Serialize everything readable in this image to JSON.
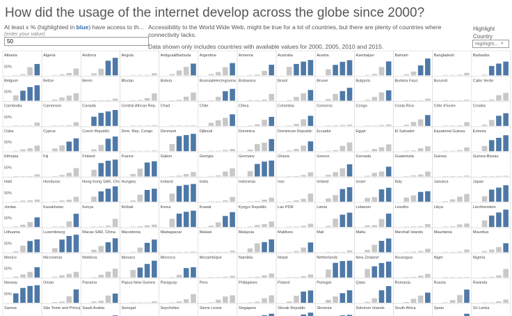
{
  "title": "How did the usage of the internet develop across the globe since 2000?",
  "parameter": {
    "label_prefix": "At least x % (highlighted in ",
    "label_highlight": "blue",
    "label_suffix": ") have access to th...",
    "hint": "(enter your value)",
    "value": "50"
  },
  "description": {
    "line1": "Accessibility to the World Wide Web, might be true for a lot of countries, but there are plenty of countries where connectivity lacks.",
    "line2": "Data shown only includes countries with available values for 2000, 2005, 2010 and 2015."
  },
  "highlight": {
    "label": "Highlight Country",
    "placeholder": "Highlight..."
  },
  "colors": {
    "highlight": "#4e79a7",
    "base": "#c8c8c8"
  },
  "chart_data": {
    "type": "bar",
    "small_multiples": true,
    "years": [
      "2000",
      "2005",
      "2010",
      "2015"
    ],
    "threshold": 50,
    "ylim": [
      0,
      100
    ],
    "ytick_label": "50%",
    "countries": [
      {
        "name": "Albania",
        "values": [
          0,
          6,
          45,
          63
        ]
      },
      {
        "name": "Algeria",
        "values": [
          0,
          6,
          13,
          38
        ]
      },
      {
        "name": "Andorra",
        "values": [
          11,
          37,
          81,
          97
        ]
      },
      {
        "name": "Angola",
        "values": [
          0,
          1,
          3,
          12
        ]
      },
      {
        "name": "Antigua&Barbuda",
        "values": [
          7,
          27,
          47,
          65
        ]
      },
      {
        "name": "Argentina",
        "values": [
          7,
          18,
          45,
          68
        ]
      },
      {
        "name": "Armenia",
        "values": [
          1,
          5,
          25,
          59
        ]
      },
      {
        "name": "Australia",
        "values": [
          47,
          63,
          76,
          85
        ]
      },
      {
        "name": "Austria",
        "values": [
          34,
          58,
          75,
          84
        ]
      },
      {
        "name": "Azerbaijan",
        "values": [
          0,
          8,
          46,
          77
        ]
      },
      {
        "name": "Bahrain",
        "values": [
          6,
          21,
          55,
          93
        ]
      },
      {
        "name": "Bangladesh",
        "values": [
          0,
          0,
          4,
          14
        ]
      },
      {
        "name": "Barbados",
        "values": [
          4,
          52,
          65,
          76
        ]
      },
      {
        "name": "Belgium",
        "values": [
          29,
          55,
          75,
          85
        ]
      },
      {
        "name": "Belize",
        "values": [
          6,
          17,
          28,
          41
        ]
      },
      {
        "name": "Benin",
        "values": [
          0,
          1,
          3,
          11
        ]
      },
      {
        "name": "Bhutan",
        "values": [
          0,
          4,
          14,
          40
        ]
      },
      {
        "name": "Bolivia",
        "values": [
          1,
          5,
          22,
          45
        ]
      },
      {
        "name": "Bosnia&Herzegovina",
        "values": [
          1,
          21,
          52,
          65
        ]
      },
      {
        "name": "Botswana",
        "values": [
          3,
          3,
          6,
          37
        ]
      },
      {
        "name": "Brasil",
        "values": [
          3,
          21,
          41,
          59
        ]
      },
      {
        "name": "Brunei",
        "values": [
          9,
          37,
          53,
          71
        ]
      },
      {
        "name": "Bulgaria",
        "values": [
          5,
          20,
          46,
          57
        ]
      },
      {
        "name": "Burkina Faso",
        "values": [
          0,
          0,
          2,
          11
        ]
      },
      {
        "name": "Burundi",
        "values": [
          0,
          1,
          1,
          5
        ]
      },
      {
        "name": "Cabo Verde",
        "values": [
          2,
          6,
          30,
          43
        ]
      },
      {
        "name": "Cambodia",
        "values": [
          0,
          0,
          1,
          19
        ]
      },
      {
        "name": "Cameroon",
        "values": [
          0,
          1,
          4,
          20
        ]
      },
      {
        "name": "Canada",
        "values": [
          51,
          72,
          80,
          88
        ]
      },
      {
        "name": "Central African Rep.",
        "values": [
          0,
          0,
          2,
          4
        ]
      },
      {
        "name": "Chad",
        "values": [
          0,
          0,
          2,
          3
        ]
      },
      {
        "name": "Chile",
        "values": [
          17,
          31,
          45,
          64
        ]
      },
      {
        "name": "China",
        "values": [
          2,
          9,
          34,
          50
        ]
      },
      {
        "name": "Colombia",
        "values": [
          2,
          11,
          37,
          56
        ]
      },
      {
        "name": "Comoros",
        "values": [
          0,
          3,
          5,
          7
        ]
      },
      {
        "name": "Congo",
        "values": [
          0,
          2,
          5,
          8
        ]
      },
      {
        "name": "Costa Rica",
        "values": [
          6,
          22,
          36,
          60
        ]
      },
      {
        "name": "Côte d'Ivoire",
        "values": [
          0,
          1,
          3,
          21
        ]
      },
      {
        "name": "Croatia",
        "values": [
          7,
          33,
          56,
          70
        ]
      },
      {
        "name": "Cuba",
        "values": [
          1,
          10,
          16,
          31
        ]
      },
      {
        "name": "Cyprus",
        "values": [
          15,
          32,
          53,
          71
        ]
      },
      {
        "name": "Czech Republic",
        "values": [
          10,
          35,
          69,
          81
        ]
      },
      {
        "name": "Dem. Rep. Congo",
        "values": [
          0,
          0,
          1,
          4
        ]
      },
      {
        "name": "Denmark",
        "values": [
          39,
          83,
          89,
          96
        ]
      },
      {
        "name": "Djibouti",
        "values": [
          0,
          1,
          7,
          12
        ]
      },
      {
        "name": "Dominica",
        "values": [
          9,
          39,
          47,
          67
        ]
      },
      {
        "name": "Dominican Republic",
        "values": [
          4,
          12,
          31,
          54
        ]
      },
      {
        "name": "Ecuador",
        "values": [
          1,
          6,
          29,
          49
        ]
      },
      {
        "name": "Egypt",
        "values": [
          1,
          12,
          22,
          38
        ]
      },
      {
        "name": "El Salvador",
        "values": [
          1,
          4,
          16,
          27
        ]
      },
      {
        "name": "Equatorial Guinea",
        "values": [
          0,
          1,
          6,
          21
        ]
      },
      {
        "name": "Estonia",
        "values": [
          29,
          61,
          74,
          88
        ]
      },
      {
        "name": "Ethiopia",
        "values": [
          0,
          0,
          1,
          12
        ]
      },
      {
        "name": "Fiji",
        "values": [
          1,
          8,
          20,
          46
        ]
      },
      {
        "name": "Finland",
        "values": [
          37,
          74,
          87,
          93
        ]
      },
      {
        "name": "France",
        "values": [
          14,
          43,
          77,
          84
        ]
      },
      {
        "name": "Gabon",
        "values": [
          1,
          5,
          13,
          24
        ]
      },
      {
        "name": "Georgia",
        "values": [
          0,
          6,
          27,
          45
        ]
      },
      {
        "name": "Germany",
        "values": [
          30,
          69,
          82,
          88
        ]
      },
      {
        "name": "Ghana",
        "values": [
          0,
          2,
          8,
          23
        ]
      },
      {
        "name": "Greece",
        "values": [
          9,
          24,
          45,
          67
        ]
      },
      {
        "name": "Grenada",
        "values": [
          4,
          20,
          27,
          54
        ]
      },
      {
        "name": "Guatemala",
        "values": [
          1,
          6,
          11,
          27
        ]
      },
      {
        "name": "Guinea",
        "values": [
          0,
          1,
          1,
          5
        ]
      },
      {
        "name": "Guinea-Bissau",
        "values": [
          0,
          2,
          3,
          4
        ]
      },
      {
        "name": "Haiti",
        "values": [
          0,
          6,
          8,
          12
        ]
      },
      {
        "name": "Honduras",
        "values": [
          1,
          7,
          11,
          27
        ]
      },
      {
        "name": "Hong Kong SAR, China",
        "values": [
          28,
          57,
          72,
          85
        ]
      },
      {
        "name": "Hungary",
        "values": [
          7,
          39,
          65,
          72
        ]
      },
      {
        "name": "Iceland",
        "values": [
          45,
          87,
          93,
          98
        ]
      },
      {
        "name": "India",
        "values": [
          1,
          2,
          8,
          26
        ]
      },
      {
        "name": "Indonesia",
        "values": [
          1,
          4,
          11,
          22
        ]
      },
      {
        "name": "Iran",
        "values": [
          1,
          8,
          16,
          45
        ]
      },
      {
        "name": "Ireland",
        "values": [
          18,
          37,
          70,
          80
        ]
      },
      {
        "name": "Israel",
        "values": [
          21,
          25,
          68,
          77
        ]
      },
      {
        "name": "Italy",
        "values": [
          23,
          35,
          54,
          58
        ]
      },
      {
        "name": "Jamaica",
        "values": [
          3,
          13,
          28,
          43
        ]
      },
      {
        "name": "Japan",
        "values": [
          30,
          67,
          78,
          91
        ]
      },
      {
        "name": "Jordan",
        "values": [
          3,
          13,
          27,
          53
        ]
      },
      {
        "name": "Kazakhstan",
        "values": [
          1,
          3,
          31,
          73
        ]
      },
      {
        "name": "Kenya",
        "values": [
          0,
          3,
          7,
          45
        ]
      },
      {
        "name": "Kiribati",
        "values": [
          2,
          4,
          9,
          13
        ]
      },
      {
        "name": "Korea",
        "values": [
          45,
          74,
          84,
          90
        ]
      },
      {
        "name": "Kuwait",
        "values": [
          7,
          26,
          61,
          82
        ]
      },
      {
        "name": "Kyrgyz Republic",
        "values": [
          1,
          11,
          16,
          30
        ]
      },
      {
        "name": "Lao PDR",
        "values": [
          0,
          1,
          7,
          18
        ]
      },
      {
        "name": "Latvia",
        "values": [
          6,
          46,
          68,
          79
        ]
      },
      {
        "name": "Lebanon",
        "values": [
          8,
          10,
          44,
          74
        ]
      },
      {
        "name": "Lesotho",
        "values": [
          0,
          3,
          4,
          16
        ]
      },
      {
        "name": "Libya",
        "values": [
          0,
          4,
          14,
          19
        ]
      },
      {
        "name": "Liechtenstein",
        "values": [
          36,
          63,
          80,
          96
        ]
      },
      {
        "name": "Lithuania",
        "values": [
          6,
          36,
          62,
          71
        ]
      },
      {
        "name": "Luxembourg",
        "values": [
          23,
          70,
          90,
          97
        ]
      },
      {
        "name": "Macao SAR, China",
        "values": [
          14,
          35,
          55,
          77
        ]
      },
      {
        "name": "Macedonia",
        "values": [
          2,
          26,
          52,
          70
        ]
      },
      {
        "name": "Madagascar",
        "values": [
          0,
          1,
          2,
          4
        ]
      },
      {
        "name": "Malawi",
        "values": [
          0,
          0,
          2,
          9
        ]
      },
      {
        "name": "Malaysia",
        "values": [
          21,
          49,
          56,
          71
        ]
      },
      {
        "name": "Maldives",
        "values": [
          2,
          7,
          26,
          54
        ]
      },
      {
        "name": "Mali",
        "values": [
          0,
          1,
          2,
          10
        ]
      },
      {
        "name": "Malta",
        "values": [
          13,
          41,
          63,
          76
        ]
      },
      {
        "name": "Marshall Islands",
        "values": [
          2,
          4,
          7,
          19
        ]
      },
      {
        "name": "Mauritania",
        "values": [
          0,
          1,
          4,
          15
        ]
      },
      {
        "name": "Mauritius",
        "values": [
          7,
          15,
          28,
          50
        ]
      },
      {
        "name": "Mexico",
        "values": [
          5,
          17,
          31,
          57
        ]
      },
      {
        "name": "Micronesia",
        "values": [
          4,
          12,
          20,
          31
        ]
      },
      {
        "name": "Moldova",
        "values": [
          1,
          15,
          32,
          49
        ]
      },
      {
        "name": "Monaco",
        "values": [
          42,
          55,
          75,
          93
        ]
      },
      {
        "name": "Morocco",
        "values": [
          1,
          15,
          52,
          57
        ]
      },
      {
        "name": "Mozambique",
        "values": [
          0,
          1,
          4,
          9
        ]
      },
      {
        "name": "Namibia",
        "values": [
          2,
          4,
          12,
          22
        ]
      },
      {
        "name": "Nepal",
        "values": [
          0,
          1,
          8,
          17
        ]
      },
      {
        "name": "Netherlands",
        "values": [
          44,
          81,
          91,
          93
        ]
      },
      {
        "name": "New Zealand",
        "values": [
          47,
          62,
          80,
          88
        ]
      },
      {
        "name": "Nicaragua",
        "values": [
          1,
          3,
          10,
          20
        ]
      },
      {
        "name": "Niger",
        "values": [
          0,
          0,
          1,
          2
        ]
      },
      {
        "name": "Nigeria",
        "values": [
          0,
          4,
          12,
          47
        ]
      },
      {
        "name": "Norway",
        "values": [
          52,
          82,
          93,
          97
        ]
      },
      {
        "name": "Oman",
        "values": [
          4,
          7,
          36,
          74
        ]
      },
      {
        "name": "Panama",
        "values": [
          7,
          11,
          40,
          51
        ]
      },
      {
        "name": "Papua New Guinea",
        "values": [
          1,
          2,
          1,
          8
        ]
      },
      {
        "name": "Paraguay",
        "values": [
          1,
          8,
          20,
          48
        ]
      },
      {
        "name": "Peru",
        "values": [
          3,
          17,
          35,
          41
        ]
      },
      {
        "name": "Philippines",
        "values": [
          2,
          6,
          25,
          41
        ]
      },
      {
        "name": "Poland",
        "values": [
          7,
          39,
          62,
          68
        ]
      },
      {
        "name": "Portugal",
        "values": [
          16,
          35,
          53,
          69
        ]
      },
      {
        "name": "Qatar",
        "values": [
          5,
          25,
          69,
          92
        ]
      },
      {
        "name": "Romania",
        "values": [
          4,
          22,
          40,
          56
        ]
      },
      {
        "name": "Russia",
        "values": [
          2,
          15,
          43,
          73
        ]
      },
      {
        "name": "Rwanda",
        "values": [
          0,
          1,
          8,
          18
        ]
      },
      {
        "name": "Samoa",
        "values": [
          1,
          3,
          7,
          25
        ]
      },
      {
        "name": "São Tomé and Principe",
        "values": [
          5,
          14,
          19,
          26
        ]
      },
      {
        "name": "Saudi Arabia",
        "values": [
          2,
          13,
          41,
          70
        ]
      },
      {
        "name": "Senegal",
        "values": [
          0,
          5,
          8,
          18
        ]
      },
      {
        "name": "Seychelles",
        "values": [
          7,
          25,
          41,
          54
        ]
      },
      {
        "name": "Sierra Leone",
        "values": [
          0,
          0,
          1,
          3
        ]
      },
      {
        "name": "Singapore",
        "values": [
          36,
          61,
          71,
          79
        ]
      },
      {
        "name": "Slovak Republic",
        "values": [
          9,
          55,
          75,
          85
        ]
      },
      {
        "name": "Slovenia",
        "values": [
          15,
          47,
          70,
          73
        ]
      },
      {
        "name": "Solomon Islands",
        "values": [
          0,
          1,
          5,
          10
        ]
      },
      {
        "name": "South Africa",
        "values": [
          5,
          8,
          24,
          52
        ]
      },
      {
        "name": "Spain",
        "values": [
          14,
          48,
          66,
          79
        ]
      },
      {
        "name": "Sri Lanka",
        "values": [
          1,
          2,
          12,
          30
        ]
      }
    ]
  }
}
